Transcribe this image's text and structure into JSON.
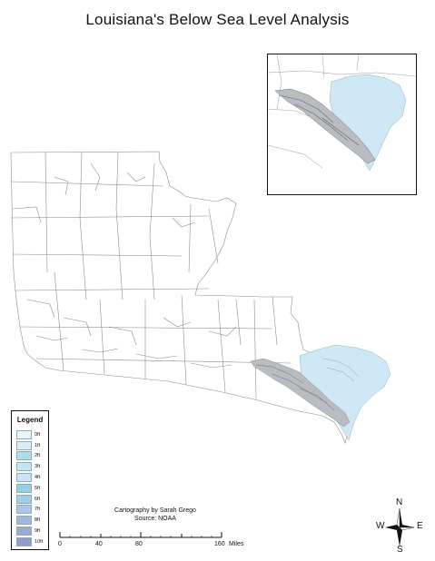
{
  "map": {
    "title": "Louisiana's Below Sea Level Analysis",
    "colors": {
      "boundary": "#8c8c8c",
      "below_sea_level_fill": "#cfe8f5",
      "dense_area": "#7a7a7a"
    }
  },
  "legend": {
    "title": "Legend",
    "items": [
      {
        "label": "0ft",
        "color": "#e6f4fb"
      },
      {
        "label": "1ft",
        "color": "#d5eef8"
      },
      {
        "label": "2ft",
        "color": "#a9e0ee"
      },
      {
        "label": "3ft",
        "color": "#bfe6f3"
      },
      {
        "label": "4ft",
        "color": "#c8e3f7"
      },
      {
        "label": "5ft",
        "color": "#8fd3e8"
      },
      {
        "label": "6ft",
        "color": "#9ecdef"
      },
      {
        "label": "7ft",
        "color": "#a8c6ef"
      },
      {
        "label": "8ft",
        "color": "#9eb8e6"
      },
      {
        "label": "9ft",
        "color": "#97aad8"
      },
      {
        "label": "10ft",
        "color": "#8d9ccc"
      }
    ]
  },
  "credits": {
    "line1": "Cartography by Sarah Grego",
    "line2": "Source: NOAA"
  },
  "scale_bar": {
    "labels": [
      "0",
      "40",
      "80",
      "160"
    ],
    "unit": "Miles"
  },
  "north_arrow": {
    "n": "N",
    "s": "S",
    "e": "E",
    "w": "W"
  }
}
